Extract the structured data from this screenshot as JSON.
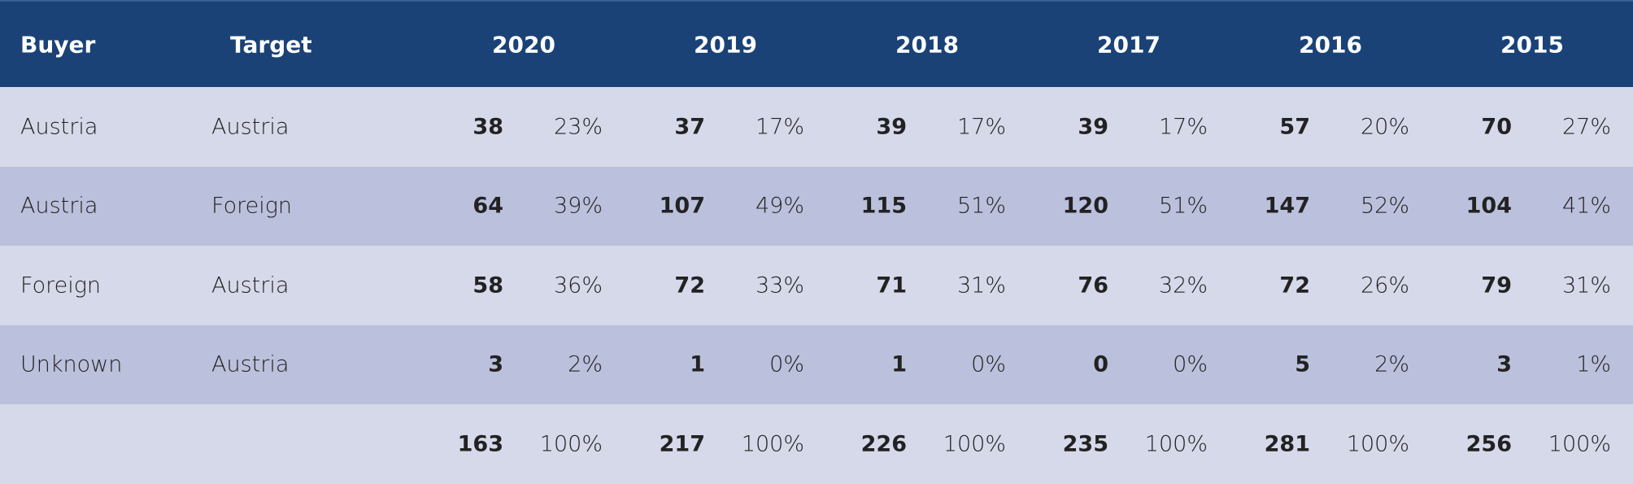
{
  "header": {
    "buyer": "Buyer",
    "target": "Target",
    "years": [
      "2020",
      "2019",
      "2018",
      "2017",
      "2016",
      "2015"
    ]
  },
  "colors": {
    "header_bg": "#1a4276",
    "row_light": "#d5d9ea",
    "row_dark": "#bbc0dc"
  },
  "rows": [
    {
      "buyer": "Austria",
      "target": "Austria",
      "values": [
        [
          "38",
          "23%"
        ],
        [
          "37",
          "17%"
        ],
        [
          "39",
          "17%"
        ],
        [
          "39",
          "17%"
        ],
        [
          "57",
          "20%"
        ],
        [
          "70",
          "27%"
        ]
      ]
    },
    {
      "buyer": "Austria",
      "target": "Foreign",
      "values": [
        [
          "64",
          "39%"
        ],
        [
          "107",
          "49%"
        ],
        [
          "115",
          "51%"
        ],
        [
          "120",
          "51%"
        ],
        [
          "147",
          "52%"
        ],
        [
          "104",
          "41%"
        ]
      ]
    },
    {
      "buyer": "Foreign",
      "target": "Austria",
      "values": [
        [
          "58",
          "36%"
        ],
        [
          "72",
          "33%"
        ],
        [
          "71",
          "31%"
        ],
        [
          "76",
          "32%"
        ],
        [
          "72",
          "26%"
        ],
        [
          "79",
          "31%"
        ]
      ]
    },
    {
      "buyer": "Unknown",
      "target": "Austria",
      "values": [
        [
          "3",
          "2%"
        ],
        [
          "1",
          "0%"
        ],
        [
          "1",
          "0%"
        ],
        [
          "0",
          "0%"
        ],
        [
          "5",
          "2%"
        ],
        [
          "3",
          "1%"
        ]
      ]
    },
    {
      "buyer": "",
      "target": "",
      "values": [
        [
          "163",
          "100%"
        ],
        [
          "217",
          "100%"
        ],
        [
          "226",
          "100%"
        ],
        [
          "235",
          "100%"
        ],
        [
          "281",
          "100%"
        ],
        [
          "256",
          "100%"
        ]
      ]
    }
  ]
}
